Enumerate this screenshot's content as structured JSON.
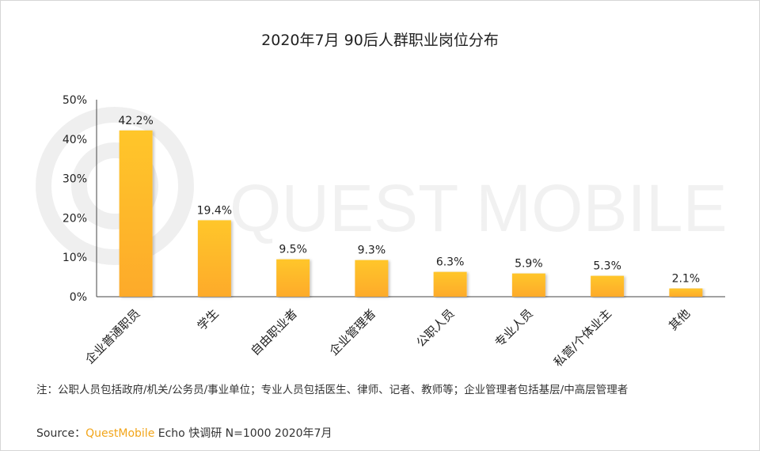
{
  "title": "2020年7月 90后人群职业岗位分布",
  "watermark_text": "QUEST MOBILE",
  "chart_data": {
    "type": "bar",
    "title": "2020年7月 90后人群职业岗位分布",
    "categories": [
      "企业普通职员",
      "学生",
      "自由职业者",
      "企业管理者",
      "公职人员",
      "专业人员",
      "私营/个体业主",
      "其他"
    ],
    "values": [
      42.2,
      19.4,
      9.5,
      9.3,
      6.3,
      5.9,
      5.3,
      2.1
    ],
    "value_labels": [
      "42.2%",
      "19.4%",
      "9.5%",
      "9.3%",
      "6.3%",
      "5.9%",
      "5.3%",
      "2.1%"
    ],
    "yticks": [
      "0%",
      "10%",
      "20%",
      "30%",
      "40%",
      "50%"
    ],
    "ylim": [
      0,
      50
    ],
    "grid": false,
    "bar_color_top": "#ffc62b",
    "bar_color_bottom": "#fdaa2c"
  },
  "note": "注：公职人员包括政府/机关/公务员/事业单位；专业人员包括医生、律师、记者、教师等；企业管理者包括基层/中高层管理者",
  "source": {
    "label": "Source：",
    "brand": "QuestMobile",
    "rest": " Echo 快调研 N=1000 2020年7月"
  },
  "colors": {
    "brand": "#f2a51a",
    "axis": "#444444",
    "text": "#222222"
  }
}
